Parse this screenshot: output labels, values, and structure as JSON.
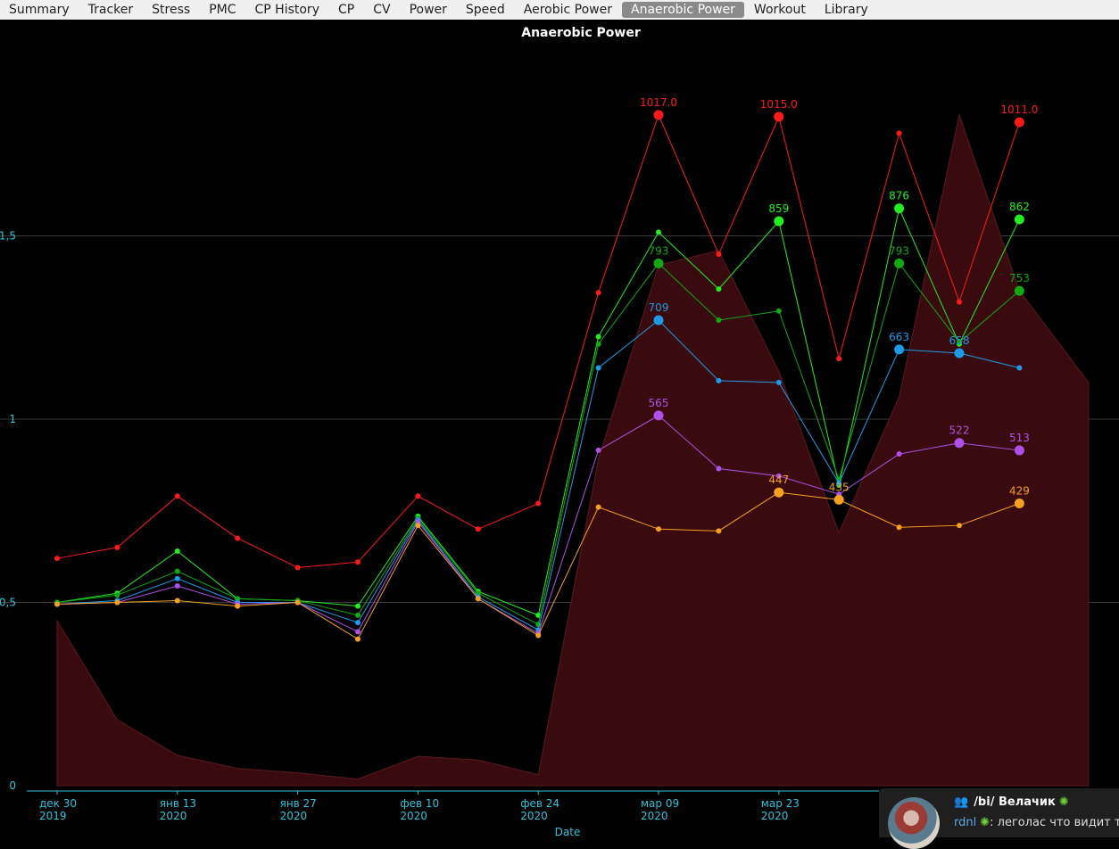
{
  "tabs": [
    {
      "label": "Summary",
      "active": false
    },
    {
      "label": "Tracker",
      "active": false
    },
    {
      "label": "Stress",
      "active": false
    },
    {
      "label": "PMC",
      "active": false
    },
    {
      "label": "CP History",
      "active": false
    },
    {
      "label": "CP",
      "active": false
    },
    {
      "label": "CV",
      "active": false
    },
    {
      "label": "Power",
      "active": false
    },
    {
      "label": "Speed",
      "active": false
    },
    {
      "label": "Aerobic Power",
      "active": false
    },
    {
      "label": "Anaerobic Power",
      "active": true
    },
    {
      "label": "Workout",
      "active": false
    },
    {
      "label": "Library",
      "active": false
    }
  ],
  "chart_data": {
    "type": "line",
    "title": "Anaerobic Power",
    "xlabel": "Date",
    "ylabel": "",
    "ylim": [
      0,
      2.0
    ],
    "yticks": [
      {
        "v": 0,
        "label": "0"
      },
      {
        "v": 0.5,
        "label": "0,5"
      },
      {
        "v": 1,
        "label": "1"
      },
      {
        "v": 1.5,
        "label": "1,5"
      }
    ],
    "grid": "horizontal",
    "xlim": [
      0,
      17.15
    ],
    "xticks": [
      {
        "x": 0,
        "line1": "дек 30",
        "line2": "2019"
      },
      {
        "x": 2,
        "line1": "янв 13",
        "line2": "2020"
      },
      {
        "x": 4,
        "line1": "янв 27",
        "line2": "2020"
      },
      {
        "x": 6,
        "line1": "фев 10",
        "line2": "2020"
      },
      {
        "x": 8,
        "line1": "фев 24",
        "line2": "2020"
      },
      {
        "x": 10,
        "line1": "мар 09",
        "line2": "2020"
      },
      {
        "x": 12,
        "line1": "мар 23",
        "line2": "2020"
      }
    ],
    "area": {
      "color": "#3a0b0e",
      "points": [
        [
          0,
          0.45
        ],
        [
          1,
          0.18
        ],
        [
          2,
          0.083
        ],
        [
          3,
          0.047
        ],
        [
          4,
          0.035
        ],
        [
          5,
          0.018
        ],
        [
          6,
          0.08
        ],
        [
          7,
          0.07
        ],
        [
          8,
          0.03
        ],
        [
          9,
          0.89
        ],
        [
          10,
          1.42
        ],
        [
          11,
          1.46
        ],
        [
          12,
          1.13
        ],
        [
          13,
          0.69
        ],
        [
          14,
          1.06
        ],
        [
          15,
          1.83
        ],
        [
          16,
          1.35
        ],
        [
          17.15,
          1.1
        ]
      ]
    },
    "series": [
      {
        "color": "#ff1a1a",
        "values": [
          0.62,
          0.65,
          0.79,
          0.675,
          0.595,
          0.61,
          0.79,
          0.7,
          0.77,
          1.345,
          1.83,
          1.45,
          1.825,
          1.165,
          1.78,
          1.32,
          1.81
        ],
        "labels": [
          {
            "i": 10,
            "text": "1017.0"
          },
          {
            "i": 12,
            "text": "1015.0"
          },
          {
            "i": 16,
            "text": "1011.0"
          }
        ]
      },
      {
        "color": "#22ee22",
        "values": [
          0.5,
          0.525,
          0.64,
          0.51,
          0.505,
          0.49,
          0.735,
          0.53,
          0.465,
          1.225,
          1.51,
          1.355,
          1.54,
          0.82,
          1.575,
          1.205,
          1.545
        ],
        "labels": [
          {
            "i": 12,
            "text": "859"
          },
          {
            "i": 14,
            "text": "876"
          },
          {
            "i": 16,
            "text": "862"
          }
        ]
      },
      {
        "color": "#12a812",
        "values": [
          0.5,
          0.52,
          0.585,
          0.51,
          0.505,
          0.465,
          0.73,
          0.525,
          0.44,
          1.205,
          1.425,
          1.27,
          1.295,
          0.835,
          1.425,
          1.21,
          1.35
        ],
        "labels": [
          {
            "i": 10,
            "text": "793"
          },
          {
            "i": 14,
            "text": "793"
          },
          {
            "i": 16,
            "text": "753"
          }
        ]
      },
      {
        "color": "#1e9be8",
        "values": [
          0.495,
          0.505,
          0.565,
          0.5,
          0.5,
          0.445,
          0.725,
          0.515,
          0.425,
          1.14,
          1.27,
          1.105,
          1.1,
          0.825,
          1.19,
          1.18,
          1.14
        ],
        "labels": [
          {
            "i": 10,
            "text": "709"
          },
          {
            "i": 14,
            "text": "663"
          },
          {
            "i": 15,
            "text": "658"
          }
        ]
      },
      {
        "color": "#b050e8",
        "values": [
          0.495,
          0.5,
          0.545,
          0.495,
          0.5,
          0.42,
          0.72,
          0.51,
          0.415,
          0.915,
          1.01,
          0.865,
          0.845,
          0.795,
          0.905,
          0.935,
          0.915
        ],
        "labels": [
          {
            "i": 10,
            "text": "565"
          },
          {
            "i": 15,
            "text": "522"
          },
          {
            "i": 16,
            "text": "513"
          }
        ]
      },
      {
        "color": "#f5a020",
        "values": [
          0.495,
          0.5,
          0.505,
          0.49,
          0.5,
          0.4,
          0.71,
          0.51,
          0.41,
          0.76,
          0.7,
          0.695,
          0.8,
          0.78,
          0.705,
          0.71,
          0.77
        ],
        "labels": [
          {
            "i": 12,
            "text": "447"
          },
          {
            "i": 13,
            "text": "435"
          },
          {
            "i": 16,
            "text": "429"
          }
        ]
      }
    ]
  },
  "notification": {
    "group": "/bi/ Велачик",
    "group_icon": "group-icon",
    "sender": "rdnl",
    "message": ": леголас что видит твоей"
  }
}
